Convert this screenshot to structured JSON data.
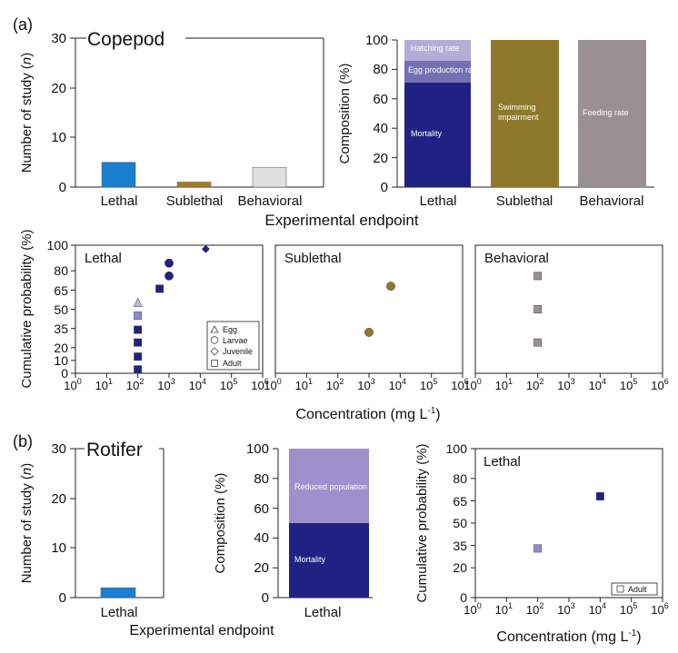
{
  "panel_labels": [
    "(a)",
    "(b)"
  ],
  "marker_legend": {
    "title": "",
    "items": [
      "Egg",
      "Larvae",
      "Juvenile",
      "Adult"
    ]
  },
  "colors": {
    "lethal_bar": "#1b7fd0",
    "sublethal_bar": "#a57d1e",
    "behavioral_bar": "#e0e0e0",
    "mortality": "#1f2283",
    "egg_production": "#7470b2",
    "hatching": "#b3aed8",
    "swimming": "#8e782a",
    "feeding": "#9a9093",
    "reduced_population": "#9b8fcc",
    "rotifer_reduced": "#9f90cd"
  },
  "chart_data": [
    {
      "id": "copepod-studies",
      "type": "bar",
      "title": "Copepod",
      "categories": [
        "Lethal",
        "Sublethal",
        "Behavioral"
      ],
      "values": [
        5,
        1,
        4
      ],
      "ylabel": "Number of study (n)",
      "xlabel": "Experimental endpoint",
      "ylim": [
        0,
        30
      ],
      "yticks": [
        "0",
        "10",
        "20",
        "30"
      ]
    },
    {
      "id": "copepod-composition",
      "type": "bar",
      "stacked": true,
      "categories": [
        "Lethal",
        "Sublethal",
        "Behavioral"
      ],
      "ylabel": "Composition (%)",
      "ylim": [
        0,
        100
      ],
      "yticks": [
        "0",
        "20",
        "40",
        "60",
        "80",
        "100"
      ],
      "series": [
        {
          "name": "Mortality",
          "values": [
            71,
            0,
            0
          ]
        },
        {
          "name": "Egg production rate",
          "values": [
            15,
            0,
            0
          ]
        },
        {
          "name": "Hatching rate",
          "values": [
            14,
            0,
            0
          ]
        },
        {
          "name": "Swimming impairment",
          "values": [
            0,
            100,
            0
          ]
        },
        {
          "name": "Feeding rate",
          "values": [
            0,
            0,
            100
          ]
        }
      ]
    },
    {
      "id": "copepod-lethal-cdf",
      "type": "scatter",
      "title": "Lethal",
      "ylabel": "Cumulative probability (%)",
      "xlabel": "Concentration (mg L-1)",
      "xscale": "log",
      "xlim": [
        1,
        1000000
      ],
      "ylim": [
        0,
        100
      ],
      "xticks": [
        "10",
        "10",
        "10",
        "10",
        "10",
        "10",
        "10"
      ],
      "xtick_exps": [
        "0",
        "1",
        "2",
        "3",
        "4",
        "5",
        "6"
      ],
      "yticks": [
        "0",
        "10",
        "20",
        "35",
        "50",
        "65",
        "80",
        "100"
      ],
      "points": [
        {
          "x": 100,
          "y": 3,
          "stage": "Adult",
          "color": "#1f2283"
        },
        {
          "x": 100,
          "y": 13,
          "stage": "Adult",
          "color": "#1f2283"
        },
        {
          "x": 100,
          "y": 24,
          "stage": "Adult",
          "color": "#1f2283"
        },
        {
          "x": 100,
          "y": 34,
          "stage": "Adult",
          "color": "#1f2283"
        },
        {
          "x": 100,
          "y": 45,
          "stage": "Adult",
          "color": "#8a8ad0"
        },
        {
          "x": 100,
          "y": 55,
          "stage": "Egg",
          "color": "#b9b8e0"
        },
        {
          "x": 500,
          "y": 66,
          "stage": "Adult",
          "color": "#1f2283"
        },
        {
          "x": 1000,
          "y": 76,
          "stage": "Larvae",
          "color": "#1f2283"
        },
        {
          "x": 1000,
          "y": 86,
          "stage": "Larvae",
          "color": "#1f2283"
        },
        {
          "x": 15000,
          "y": 97,
          "stage": "Juvenile",
          "color": "#1f2283"
        }
      ]
    },
    {
      "id": "copepod-sublethal-cdf",
      "type": "scatter",
      "title": "Sublethal",
      "xscale": "log",
      "xlim": [
        1,
        1000000
      ],
      "ylim": [
        0,
        100
      ],
      "points": [
        {
          "x": 1000,
          "y": 32,
          "stage": "Larvae",
          "color": "#8e782a"
        },
        {
          "x": 5000,
          "y": 68,
          "stage": "Larvae",
          "color": "#8e782a"
        }
      ]
    },
    {
      "id": "copepod-behavioral-cdf",
      "type": "scatter",
      "title": "Behavioral",
      "xscale": "log",
      "xlim": [
        1,
        1000000
      ],
      "ylim": [
        0,
        100
      ],
      "points": [
        {
          "x": 100,
          "y": 24,
          "stage": "Adult",
          "color": "#9a9093"
        },
        {
          "x": 100,
          "y": 50,
          "stage": "Adult",
          "color": "#9a9093"
        },
        {
          "x": 100,
          "y": 76,
          "stage": "Adult",
          "color": "#9a9093"
        }
      ]
    },
    {
      "id": "rotifer-studies",
      "type": "bar",
      "title": "Rotifer",
      "categories": [
        "Lethal"
      ],
      "values": [
        2
      ],
      "ylabel": "Number of study (n)",
      "xlabel": "Experimental endpoint",
      "ylim": [
        0,
        30
      ],
      "yticks": [
        "0",
        "10",
        "20",
        "30"
      ]
    },
    {
      "id": "rotifer-composition",
      "type": "bar",
      "stacked": true,
      "categories": [
        "Lethal"
      ],
      "ylabel": "Composition (%)",
      "ylim": [
        0,
        100
      ],
      "yticks": [
        "0",
        "20",
        "40",
        "60",
        "80",
        "100"
      ],
      "series": [
        {
          "name": "Mortality",
          "values": [
            50
          ]
        },
        {
          "name": "Reduced population",
          "values": [
            50
          ]
        }
      ]
    },
    {
      "id": "rotifer-lethal-cdf",
      "type": "scatter",
      "title": "Lethal",
      "ylabel": "Cumulative probability (%)",
      "xlabel": "Concentration (mg L-1)",
      "xscale": "log",
      "xlim": [
        1,
        1000000
      ],
      "ylim": [
        0,
        100
      ],
      "xticks": [
        "10",
        "10",
        "10",
        "10",
        "10",
        "10",
        "10"
      ],
      "xtick_exps": [
        "0",
        "1",
        "2",
        "3",
        "4",
        "5",
        "6"
      ],
      "yticks": [
        "0",
        "20",
        "35",
        "50",
        "65",
        "80",
        "100"
      ],
      "legend": [
        "Adult"
      ],
      "points": [
        {
          "x": 100,
          "y": 33,
          "stage": "Adult",
          "color": "#8f8ccc"
        },
        {
          "x": 10000,
          "y": 68,
          "stage": "Adult",
          "color": "#1f2283"
        }
      ]
    }
  ]
}
